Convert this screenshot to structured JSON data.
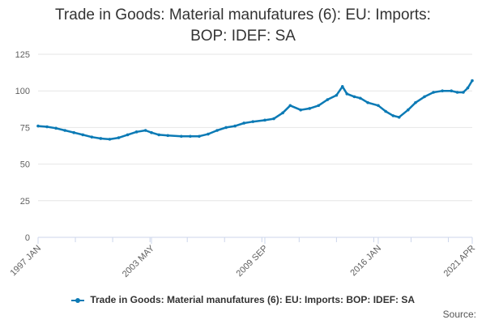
{
  "chart_data": {
    "type": "line",
    "title_lines": [
      "Trade in Goods: Material manufatures (6): EU: Imports:",
      "BOP: IDEF: SA"
    ],
    "xlabel": "",
    "ylabel": "",
    "ylim": [
      0,
      125
    ],
    "yticks": [
      0,
      25,
      50,
      75,
      100,
      125
    ],
    "xlim": [
      "1997-01",
      "2021-04"
    ],
    "xtick_labels": [
      "1997 JAN",
      "2003 MAY",
      "2009 SEP",
      "2016 JAN",
      "2021 APR"
    ],
    "xtick_dates": [
      "1997-01",
      "2003-05",
      "2009-09",
      "2016-01",
      "2021-04"
    ],
    "grid": "horizontal",
    "legend_position": "bottom",
    "series": [
      {
        "name": "Trade in Goods: Material manufatures (6): EU: Imports: BOP: IDEF: SA",
        "color": "#0b7ab5",
        "points": [
          [
            "1997-01",
            76
          ],
          [
            "1997-07",
            75.5
          ],
          [
            "1998-01",
            74.5
          ],
          [
            "1998-07",
            73
          ],
          [
            "1999-01",
            71.5
          ],
          [
            "1999-07",
            70
          ],
          [
            "2000-01",
            68.5
          ],
          [
            "2000-07",
            67.5
          ],
          [
            "2001-01",
            67
          ],
          [
            "2001-07",
            68
          ],
          [
            "2002-01",
            70
          ],
          [
            "2002-07",
            72
          ],
          [
            "2003-01",
            73
          ],
          [
            "2003-05",
            71.5
          ],
          [
            "2003-10",
            70
          ],
          [
            "2004-04",
            69.5
          ],
          [
            "2005-01",
            69
          ],
          [
            "2005-07",
            69
          ],
          [
            "2006-01",
            69
          ],
          [
            "2006-07",
            70.5
          ],
          [
            "2007-01",
            73
          ],
          [
            "2007-07",
            75
          ],
          [
            "2008-01",
            76
          ],
          [
            "2008-07",
            78
          ],
          [
            "2009-01",
            79
          ],
          [
            "2009-09",
            80
          ],
          [
            "2010-03",
            81
          ],
          [
            "2010-09",
            85
          ],
          [
            "2011-02",
            90
          ],
          [
            "2011-09",
            87
          ],
          [
            "2012-03",
            88
          ],
          [
            "2012-09",
            90
          ],
          [
            "2013-03",
            94
          ],
          [
            "2013-09",
            97
          ],
          [
            "2014-01",
            103
          ],
          [
            "2014-04",
            98
          ],
          [
            "2014-09",
            96
          ],
          [
            "2015-01",
            95
          ],
          [
            "2015-06",
            92
          ],
          [
            "2016-01",
            90
          ],
          [
            "2016-06",
            86
          ],
          [
            "2016-11",
            83
          ],
          [
            "2017-03",
            82
          ],
          [
            "2017-09",
            87
          ],
          [
            "2018-02",
            92
          ],
          [
            "2018-08",
            96
          ],
          [
            "2019-02",
            99
          ],
          [
            "2019-08",
            100
          ],
          [
            "2020-02",
            100
          ],
          [
            "2020-06",
            99
          ],
          [
            "2020-10",
            99
          ],
          [
            "2021-01",
            102
          ],
          [
            "2021-04",
            107
          ]
        ]
      }
    ]
  },
  "source_label": "Source:"
}
